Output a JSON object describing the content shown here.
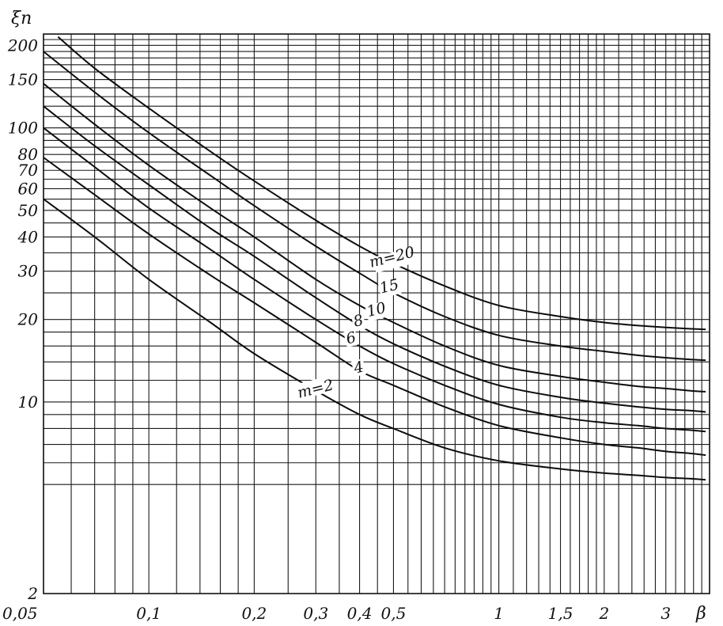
{
  "chart_data": {
    "type": "line",
    "title": "",
    "xlabel": "β",
    "ylabel": "ξn",
    "x_scale": "log",
    "y_scale": "log",
    "xlim": [
      0.05,
      4
    ],
    "ylim": [
      2,
      220
    ],
    "grid": true,
    "x_ticks": [
      {
        "value": 0.05,
        "label": "0,05"
      },
      {
        "value": 0.1,
        "label": "0,1"
      },
      {
        "value": 0.2,
        "label": "0,2"
      },
      {
        "value": 0.3,
        "label": "0,3"
      },
      {
        "value": 0.4,
        "label": "0,4"
      },
      {
        "value": 0.5,
        "label": "0,5"
      },
      {
        "value": 1,
        "label": "1"
      },
      {
        "value": 1.5,
        "label": "1,5"
      },
      {
        "value": 2,
        "label": "2"
      },
      {
        "value": 3,
        "label": "3"
      }
    ],
    "y_ticks": [
      {
        "value": 2,
        "label": "2"
      },
      {
        "value": 10,
        "label": "10"
      },
      {
        "value": 20,
        "label": "20"
      },
      {
        "value": 30,
        "label": "30"
      },
      {
        "value": 40,
        "label": "40"
      },
      {
        "value": 50,
        "label": "50"
      },
      {
        "value": 60,
        "label": "60"
      },
      {
        "value": 70,
        "label": "70"
      },
      {
        "value": 80,
        "label": "80"
      },
      {
        "value": 100,
        "label": "100"
      },
      {
        "value": 150,
        "label": "150"
      },
      {
        "value": 200,
        "label": "200"
      }
    ],
    "x_grid": [
      0.05,
      0.06,
      0.07,
      0.08,
      0.09,
      0.1,
      0.12,
      0.14,
      0.16,
      0.18,
      0.2,
      0.25,
      0.3,
      0.35,
      0.4,
      0.45,
      0.5,
      0.55,
      0.6,
      0.65,
      0.7,
      0.75,
      0.8,
      0.85,
      0.9,
      0.95,
      1,
      1.1,
      1.2,
      1.3,
      1.4,
      1.5,
      1.6,
      1.7,
      1.8,
      1.9,
      2,
      2.2,
      2.4,
      2.6,
      2.8,
      3,
      3.2,
      3.4,
      3.6,
      3.8,
      4
    ],
    "y_grid": [
      2,
      5,
      6,
      7,
      8,
      9,
      10,
      12,
      14,
      16,
      18,
      20,
      25,
      30,
      35,
      40,
      45,
      50,
      55,
      60,
      65,
      70,
      75,
      80,
      85,
      90,
      95,
      100,
      110,
      120,
      130,
      140,
      150,
      160,
      170,
      180,
      190,
      200,
      210,
      220
    ],
    "series": [
      {
        "name": "m=2",
        "label": "m=2",
        "x": [
          0.05,
          0.07,
          0.1,
          0.15,
          0.2,
          0.3,
          0.4,
          0.5,
          0.7,
          1,
          1.5,
          2,
          2.5,
          3,
          3.5,
          3.9
        ],
        "y": [
          55,
          40,
          28,
          19.5,
          15,
          11,
          9,
          8,
          6.8,
          6.1,
          5.7,
          5.5,
          5.4,
          5.3,
          5.25,
          5.2
        ]
      },
      {
        "name": "4",
        "label": "4",
        "x": [
          0.05,
          0.07,
          0.1,
          0.15,
          0.2,
          0.3,
          0.4,
          0.5,
          0.7,
          1,
          1.5,
          2,
          2.5,
          3,
          3.5,
          3.9
        ],
        "y": [
          78,
          57,
          41,
          29,
          23,
          16.5,
          13,
          11.5,
          9.6,
          8.2,
          7.4,
          7,
          6.8,
          6.6,
          6.5,
          6.4
        ]
      },
      {
        "name": "6",
        "label": "6",
        "x": [
          0.05,
          0.07,
          0.1,
          0.15,
          0.2,
          0.3,
          0.4,
          0.5,
          0.7,
          1,
          1.5,
          2,
          2.5,
          3,
          3.5,
          3.9
        ],
        "y": [
          100,
          72,
          51,
          36,
          28,
          20,
          16,
          13.8,
          11.5,
          9.8,
          8.8,
          8.4,
          8.2,
          8,
          7.9,
          7.8
        ]
      },
      {
        "name": "8",
        "label": "8",
        "x": [
          0.05,
          0.07,
          0.1,
          0.15,
          0.2,
          0.3,
          0.4,
          0.5,
          0.7,
          1,
          1.5,
          2,
          2.5,
          3,
          3.5,
          3.9
        ],
        "y": [
          120,
          86,
          62,
          43,
          34,
          24,
          19,
          16.3,
          13.5,
          11.5,
          10.4,
          9.9,
          9.6,
          9.4,
          9.3,
          9.2
        ]
      },
      {
        "name": "10",
        "label": "10",
        "x": [
          0.05,
          0.07,
          0.1,
          0.15,
          0.2,
          0.3,
          0.4,
          0.5,
          0.7,
          1,
          1.5,
          2,
          2.5,
          3,
          3.5,
          3.9
        ],
        "y": [
          145,
          103,
          73,
          51,
          40,
          28,
          22.5,
          19.5,
          16,
          13.6,
          12.4,
          11.8,
          11.4,
          11.2,
          11,
          10.9
        ]
      },
      {
        "name": "15",
        "label": "15",
        "x": [
          0.05,
          0.07,
          0.1,
          0.15,
          0.2,
          0.3,
          0.4,
          0.5,
          0.7,
          1,
          1.5,
          2,
          2.5,
          3,
          3.5,
          3.9
        ],
        "y": [
          190,
          135,
          96,
          67,
          52,
          37,
          29.5,
          25,
          20.5,
          17.5,
          16,
          15.3,
          14.8,
          14.5,
          14.3,
          14.2
        ]
      },
      {
        "name": "m=20",
        "label": "m=20",
        "x": [
          0.055,
          0.07,
          0.1,
          0.15,
          0.2,
          0.3,
          0.4,
          0.5,
          0.7,
          1,
          1.5,
          2,
          2.5,
          3,
          3.5,
          3.9
        ],
        "y": [
          215,
          165,
          118,
          82,
          64,
          46,
          37,
          32,
          26.5,
          22.5,
          20.5,
          19.5,
          19,
          18.7,
          18.5,
          18.4
        ]
      }
    ]
  }
}
